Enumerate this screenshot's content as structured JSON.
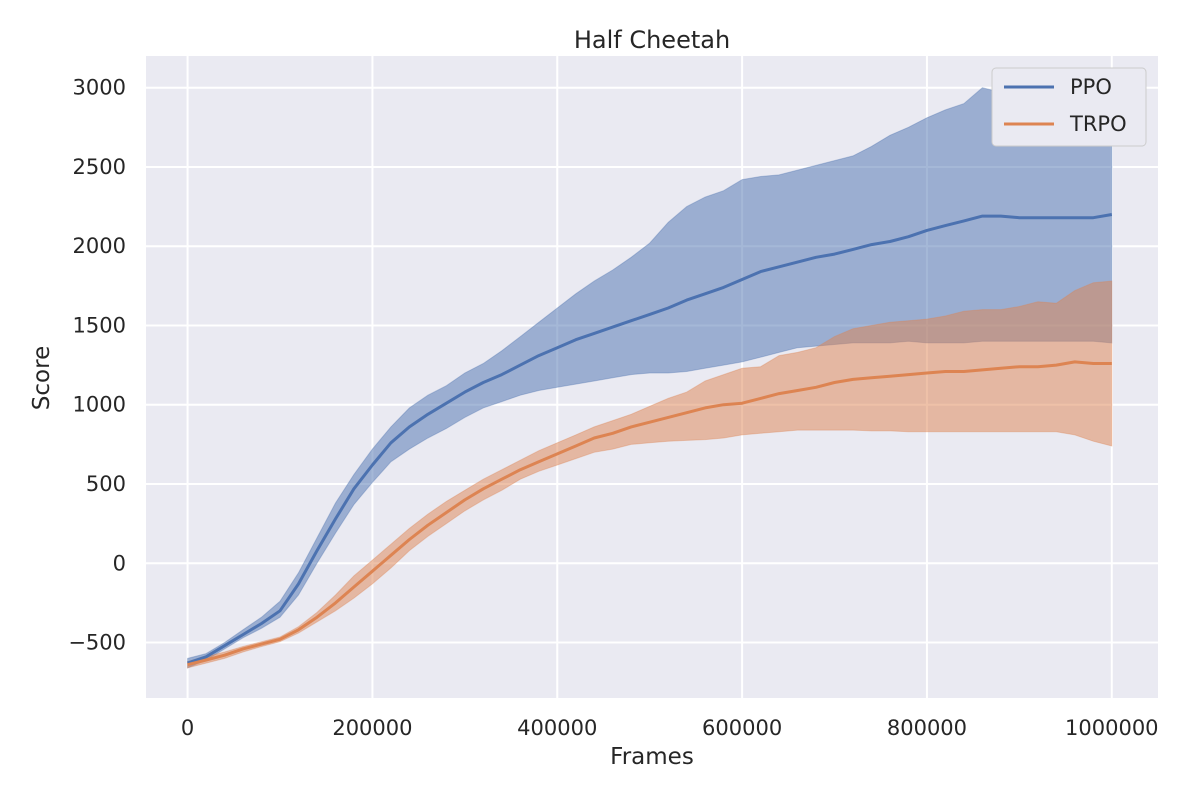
{
  "chart_data": {
    "type": "line",
    "title": "Half Cheetah",
    "xlabel": "Frames",
    "ylabel": "Score",
    "xlim": [
      -45000,
      1050000
    ],
    "ylim": [
      -850,
      3200
    ],
    "xticks": [
      0,
      200000,
      400000,
      600000,
      800000,
      1000000
    ],
    "yticks": [
      -500,
      0,
      500,
      1000,
      1500,
      2000,
      2500,
      3000
    ],
    "xtick_labels": [
      "0",
      "200000",
      "400000",
      "600000",
      "800000",
      "1000000"
    ],
    "ytick_labels": [
      "−500",
      "0",
      "500",
      "1000",
      "1500",
      "2000",
      "2500",
      "3000"
    ],
    "grid": true,
    "legend_position": "top-right",
    "series": [
      {
        "name": "PPO",
        "color": "#4c72b0",
        "x": [
          0,
          20000,
          40000,
          60000,
          80000,
          100000,
          120000,
          140000,
          160000,
          180000,
          200000,
          220000,
          240000,
          260000,
          280000,
          300000,
          320000,
          340000,
          360000,
          380000,
          400000,
          420000,
          440000,
          460000,
          480000,
          500000,
          520000,
          540000,
          560000,
          580000,
          600000,
          620000,
          640000,
          660000,
          680000,
          700000,
          720000,
          740000,
          760000,
          780000,
          800000,
          820000,
          840000,
          860000,
          880000,
          900000,
          920000,
          940000,
          960000,
          980000,
          1000000
        ],
        "mean": [
          -630,
          -590,
          -520,
          -450,
          -380,
          -300,
          -130,
          80,
          280,
          470,
          620,
          760,
          860,
          940,
          1010,
          1080,
          1140,
          1190,
          1250,
          1310,
          1360,
          1410,
          1450,
          1490,
          1530,
          1570,
          1610,
          1660,
          1700,
          1740,
          1790,
          1840,
          1870,
          1900,
          1930,
          1950,
          1980,
          2010,
          2030,
          2060,
          2100,
          2130,
          2160,
          2190,
          2190,
          2180,
          2180,
          2180,
          2180,
          2180,
          2200
        ],
        "upper": [
          -600,
          -570,
          -500,
          -420,
          -340,
          -240,
          -60,
          160,
          380,
          560,
          720,
          860,
          980,
          1060,
          1120,
          1200,
          1260,
          1340,
          1430,
          1520,
          1610,
          1700,
          1780,
          1850,
          1930,
          2020,
          2150,
          2250,
          2310,
          2350,
          2420,
          2440,
          2450,
          2480,
          2510,
          2540,
          2570,
          2630,
          2700,
          2750,
          2810,
          2860,
          2900,
          3000,
          2970,
          2990,
          2980,
          2930,
          2880,
          2920,
          2950
        ],
        "lower": [
          -660,
          -610,
          -540,
          -470,
          -410,
          -340,
          -200,
          0,
          190,
          370,
          510,
          640,
          720,
          790,
          850,
          920,
          980,
          1020,
          1060,
          1090,
          1110,
          1130,
          1150,
          1170,
          1190,
          1200,
          1200,
          1210,
          1230,
          1250,
          1270,
          1300,
          1330,
          1360,
          1370,
          1380,
          1390,
          1390,
          1390,
          1400,
          1390,
          1390,
          1390,
          1400,
          1400,
          1400,
          1400,
          1400,
          1400,
          1400,
          1390
        ]
      },
      {
        "name": "TRPO",
        "color": "#dd8452",
        "x": [
          0,
          20000,
          40000,
          60000,
          80000,
          100000,
          120000,
          140000,
          160000,
          180000,
          200000,
          220000,
          240000,
          260000,
          280000,
          300000,
          320000,
          340000,
          360000,
          380000,
          400000,
          420000,
          440000,
          460000,
          480000,
          500000,
          520000,
          540000,
          560000,
          580000,
          600000,
          620000,
          640000,
          660000,
          680000,
          700000,
          720000,
          740000,
          760000,
          780000,
          800000,
          820000,
          840000,
          860000,
          880000,
          900000,
          920000,
          940000,
          960000,
          980000,
          1000000
        ],
        "mean": [
          -640,
          -610,
          -580,
          -540,
          -510,
          -480,
          -420,
          -340,
          -250,
          -150,
          -50,
          50,
          150,
          240,
          320,
          400,
          470,
          530,
          590,
          640,
          690,
          740,
          790,
          820,
          860,
          890,
          920,
          950,
          980,
          1000,
          1010,
          1040,
          1070,
          1090,
          1110,
          1140,
          1160,
          1170,
          1180,
          1190,
          1200,
          1210,
          1210,
          1220,
          1230,
          1240,
          1240,
          1250,
          1270,
          1260,
          1260
        ],
        "upper": [
          -620,
          -590,
          -560,
          -525,
          -495,
          -465,
          -400,
          -310,
          -200,
          -80,
          20,
          120,
          220,
          310,
          390,
          460,
          530,
          590,
          650,
          710,
          760,
          810,
          860,
          900,
          940,
          990,
          1040,
          1080,
          1150,
          1190,
          1230,
          1240,
          1310,
          1330,
          1360,
          1430,
          1480,
          1500,
          1520,
          1530,
          1540,
          1560,
          1590,
          1600,
          1600,
          1620,
          1650,
          1640,
          1720,
          1770,
          1780
        ],
        "lower": [
          -660,
          -630,
          -600,
          -560,
          -525,
          -495,
          -440,
          -370,
          -300,
          -220,
          -130,
          -30,
          80,
          170,
          250,
          330,
          400,
          460,
          530,
          580,
          620,
          660,
          700,
          720,
          750,
          760,
          770,
          775,
          780,
          790,
          810,
          820,
          830,
          840,
          840,
          840,
          840,
          835,
          835,
          830,
          830,
          830,
          830,
          830,
          830,
          830,
          830,
          830,
          810,
          770,
          740
        ]
      }
    ]
  }
}
